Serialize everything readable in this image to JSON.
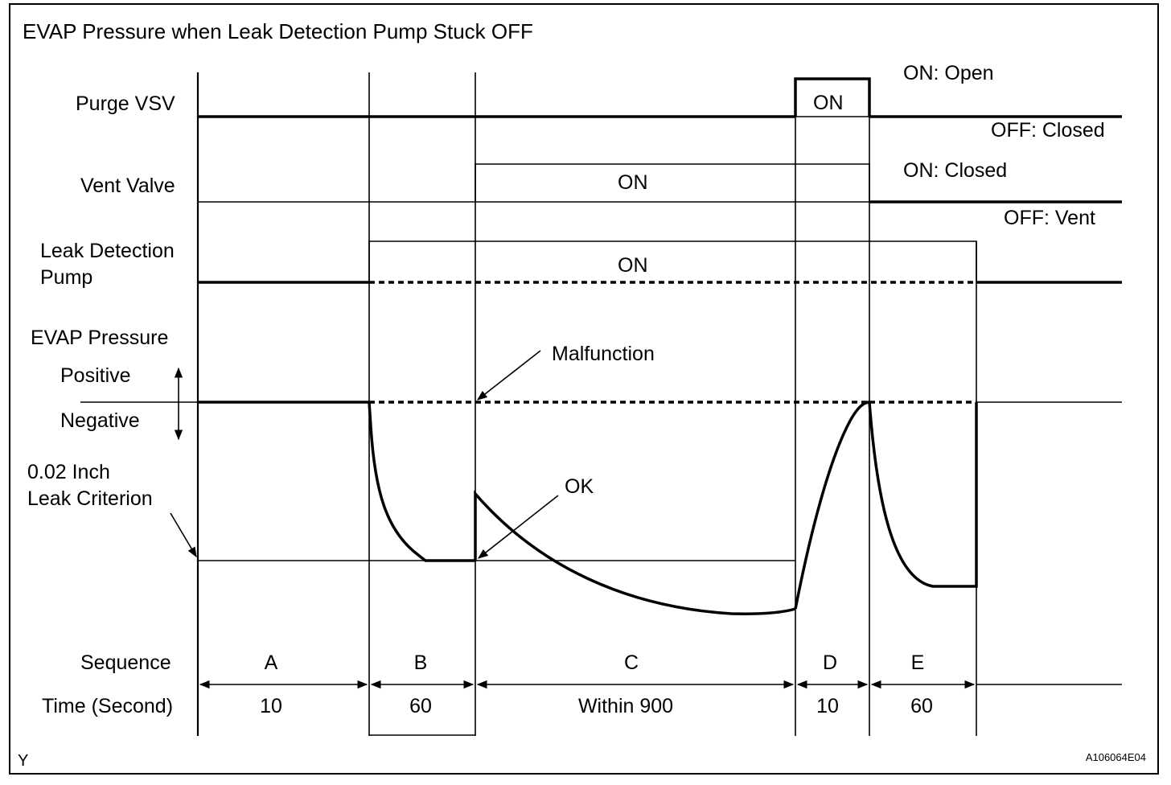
{
  "title": "EVAP Pressure when Leak Detection Pump Stuck OFF",
  "signals": {
    "purge_vsv": "Purge VSV",
    "vent_valve": "Vent Valve",
    "pump_line1": "Leak Detection",
    "pump_line2": "Pump",
    "evap_pressure": "EVAP Pressure",
    "positive": "Positive",
    "negative": "Negative",
    "criterion_line1": "0.02 Inch",
    "criterion_line2": "Leak Criterion"
  },
  "states": {
    "purge_on": "ON",
    "vent_on": "ON",
    "pump_on": "ON",
    "purge_on_meaning": "ON: Open",
    "purge_off_meaning": "OFF: Closed",
    "vent_on_meaning": "ON: Closed",
    "vent_off_meaning": "OFF: Vent"
  },
  "annotations": {
    "malfunction": "Malfunction",
    "ok": "OK"
  },
  "rows": {
    "sequence": "Sequence",
    "time": "Time (Second)"
  },
  "sequence": [
    {
      "label": "A",
      "time": "10"
    },
    {
      "label": "B",
      "time": "60"
    },
    {
      "label": "C",
      "time": "Within 900"
    },
    {
      "label": "D",
      "time": "10"
    },
    {
      "label": "E",
      "time": "60"
    }
  ],
  "footer": {
    "left": "Y",
    "right": "A106064E04"
  }
}
